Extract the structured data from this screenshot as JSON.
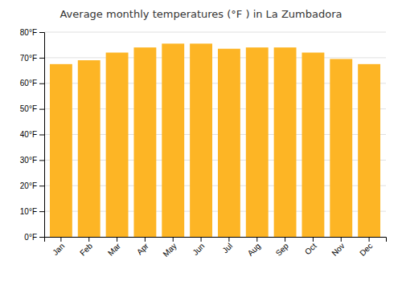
{
  "chart_data": {
    "type": "bar",
    "title": "Average monthly temperatures (°F ) in La Zumbadora",
    "categories": [
      "Jan",
      "Feb",
      "Mar",
      "Apr",
      "May",
      "Jun",
      "Jul",
      "Aug",
      "Sep",
      "Oct",
      "Nov",
      "Dec"
    ],
    "values": [
      67.5,
      69.0,
      72.0,
      74.0,
      75.5,
      75.5,
      73.5,
      74.0,
      74.0,
      72.0,
      69.5,
      67.5
    ],
    "color": "#FDB525",
    "ylim": [
      0,
      80
    ],
    "yticks": [
      {
        "value": 0,
        "label": "0°F"
      },
      {
        "value": 10,
        "label": "10°F"
      },
      {
        "value": 20,
        "label": "20°F"
      },
      {
        "value": 30,
        "label": "30°F"
      },
      {
        "value": 40,
        "label": "40°F"
      },
      {
        "value": 50,
        "label": "50°F"
      },
      {
        "value": 60,
        "label": "60°F"
      },
      {
        "value": 70,
        "label": "70°F"
      },
      {
        "value": 80,
        "label": "80°F"
      }
    ],
    "grid": true
  }
}
